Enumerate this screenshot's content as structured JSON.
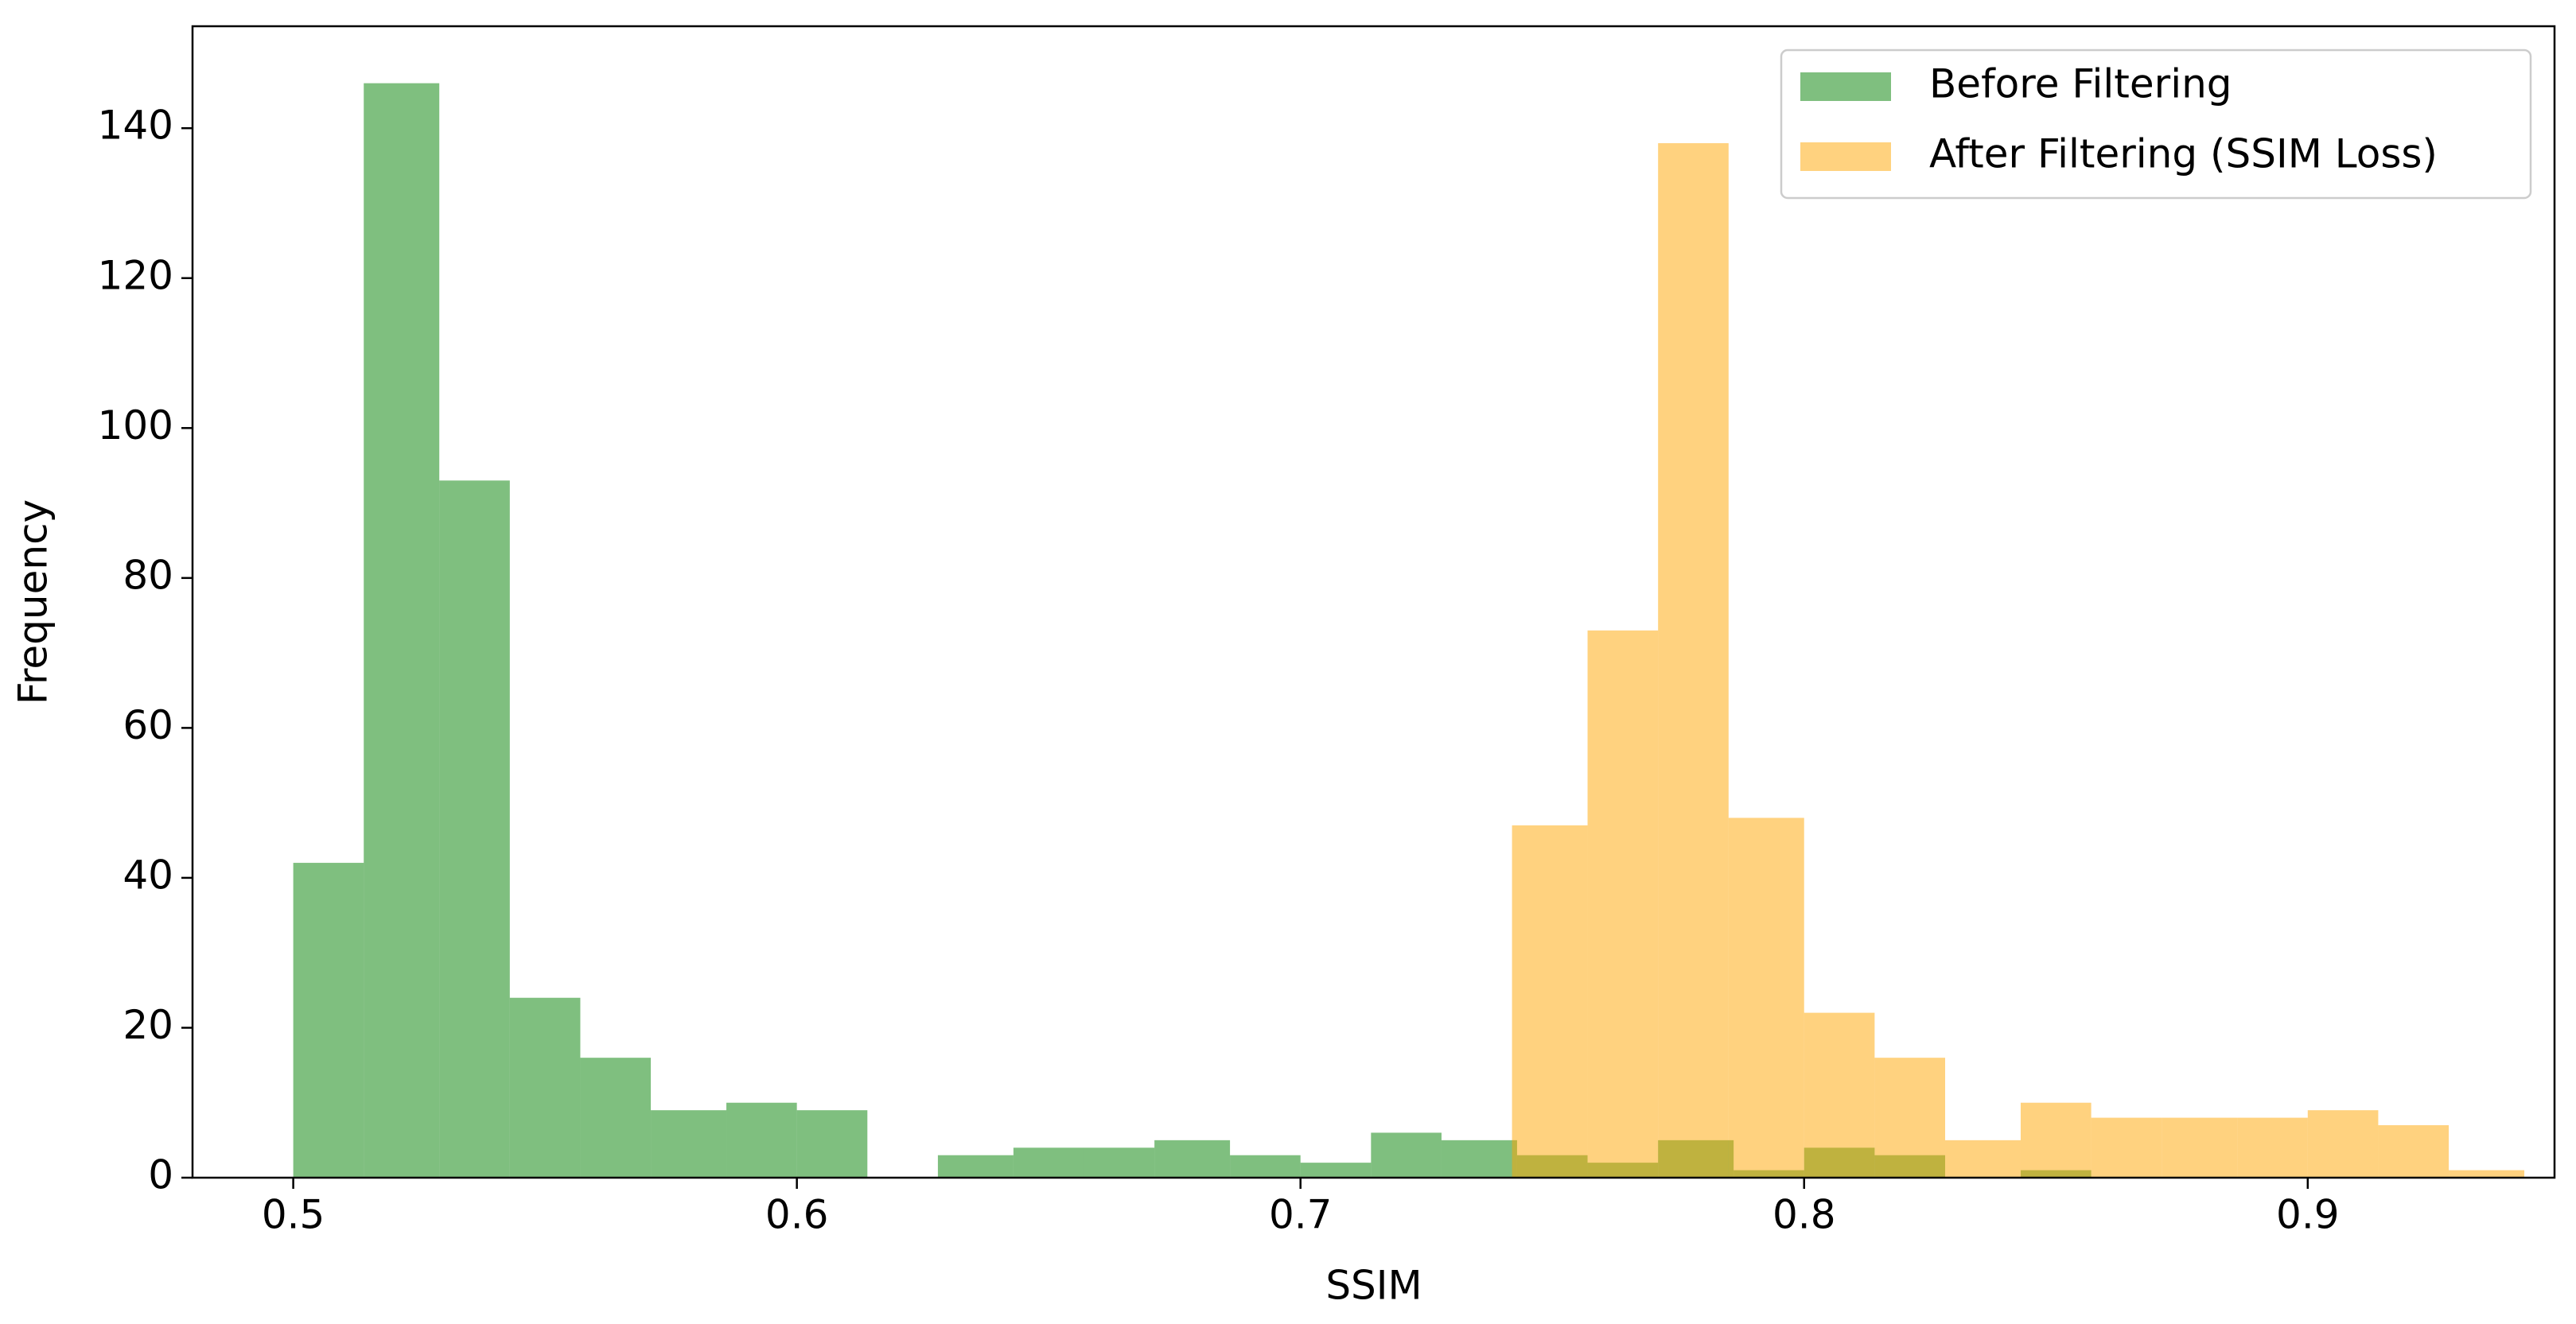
{
  "chart_data": {
    "type": "histogram",
    "x_label": "SSIM",
    "y_label": "Frequency",
    "xlim": [
      0.48,
      0.949
    ],
    "ylim": [
      0,
      153.6
    ],
    "xticks": [
      0.5,
      0.6,
      0.7,
      0.8,
      0.9
    ],
    "yticks": [
      0,
      20,
      40,
      60,
      80,
      100,
      120,
      140
    ],
    "legend": "upper right",
    "series": [
      {
        "name": "Before Filtering",
        "color": "green",
        "bins": [
          0.5,
          0.514,
          0.529,
          0.543,
          0.557,
          0.571,
          0.586,
          0.6,
          0.614,
          0.628,
          0.643,
          0.657,
          0.671,
          0.686,
          0.7,
          0.714,
          0.728,
          0.743,
          0.757,
          0.771,
          0.786,
          0.8,
          0.814,
          0.828,
          0.843,
          0.857
        ],
        "values": [
          42,
          146,
          93,
          24,
          16,
          9,
          10,
          9,
          0,
          3,
          4,
          4,
          5,
          3,
          2,
          6,
          5,
          3,
          2,
          5,
          1,
          4,
          3,
          0,
          1
        ]
      },
      {
        "name": "After Filtering (SSIM Loss)",
        "color": "orange",
        "bins": [
          0.742,
          0.757,
          0.771,
          0.785,
          0.8,
          0.814,
          0.828,
          0.843,
          0.857,
          0.871,
          0.886,
          0.9,
          0.914,
          0.928,
          0.943
        ],
        "values": [
          47,
          73,
          138,
          48,
          22,
          16,
          5,
          10,
          8,
          8,
          8,
          9,
          7,
          1
        ]
      }
    ]
  }
}
